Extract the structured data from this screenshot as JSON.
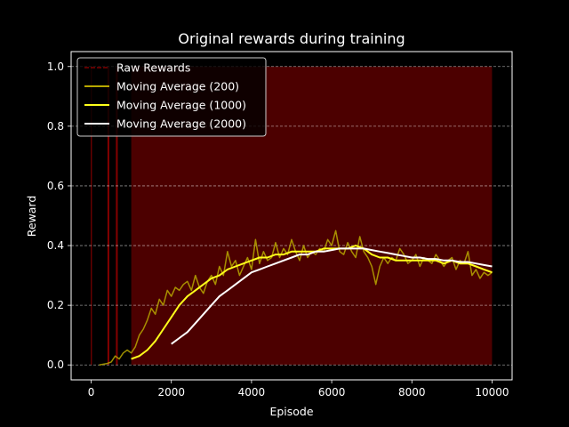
{
  "chart_data": {
    "type": "line",
    "title": "Original rewards during training",
    "xlabel": "Episode",
    "ylabel": "Reward",
    "xlim": [
      -500,
      10500
    ],
    "ylim": [
      -0.05,
      1.05
    ],
    "xticks": [
      0,
      2000,
      4000,
      6000,
      8000,
      10000
    ],
    "yticks": [
      0.0,
      0.2,
      0.4,
      0.6,
      0.8,
      1.0
    ],
    "xtick_labels": [
      "0",
      "2000",
      "4000",
      "6000",
      "8000",
      "10000"
    ],
    "ytick_labels": [
      "0.0",
      "0.2",
      "0.4",
      "0.6",
      "0.8",
      "1.0"
    ],
    "grid": "horizontal-dashed",
    "legend_position": "top-left",
    "background": "#000000",
    "raw_rewards": {
      "name": "Raw Rewards",
      "color": "#7f0000",
      "description": "binary rewards (0 or 1) per episode; dense after ~1000 episodes",
      "sparse_episodes": [
        5,
        420,
        440,
        630,
        650
      ],
      "dense_range": [
        1000,
        10000
      ]
    },
    "series": [
      {
        "name": "Moving Average (200)",
        "color": "#b8a800",
        "x": [
          200,
          400,
          500,
          600,
          700,
          800,
          900,
          1000,
          1100,
          1200,
          1300,
          1400,
          1500,
          1600,
          1700,
          1800,
          1900,
          2000,
          2100,
          2200,
          2300,
          2400,
          2500,
          2600,
          2700,
          2800,
          2900,
          3000,
          3100,
          3200,
          3300,
          3400,
          3500,
          3600,
          3700,
          3800,
          3900,
          4000,
          4100,
          4200,
          4300,
          4400,
          4500,
          4600,
          4700,
          4800,
          4900,
          5000,
          5100,
          5200,
          5300,
          5400,
          5500,
          5600,
          5700,
          5800,
          5900,
          6000,
          6100,
          6200,
          6300,
          6400,
          6500,
          6600,
          6700,
          6800,
          6900,
          7000,
          7100,
          7200,
          7300,
          7400,
          7500,
          7600,
          7700,
          7800,
          7900,
          8000,
          8100,
          8200,
          8300,
          8400,
          8500,
          8600,
          8700,
          8800,
          8900,
          9000,
          9100,
          9200,
          9300,
          9400,
          9500,
          9600,
          9700,
          9800,
          9900,
          10000
        ],
        "values": [
          0.0,
          0.005,
          0.01,
          0.03,
          0.02,
          0.04,
          0.05,
          0.04,
          0.06,
          0.1,
          0.12,
          0.15,
          0.19,
          0.17,
          0.22,
          0.2,
          0.25,
          0.23,
          0.26,
          0.25,
          0.27,
          0.28,
          0.25,
          0.3,
          0.26,
          0.24,
          0.28,
          0.3,
          0.27,
          0.33,
          0.3,
          0.38,
          0.33,
          0.35,
          0.3,
          0.33,
          0.36,
          0.32,
          0.42,
          0.34,
          0.38,
          0.35,
          0.36,
          0.41,
          0.36,
          0.39,
          0.37,
          0.42,
          0.38,
          0.35,
          0.4,
          0.36,
          0.38,
          0.37,
          0.39,
          0.38,
          0.42,
          0.4,
          0.45,
          0.38,
          0.37,
          0.41,
          0.38,
          0.36,
          0.43,
          0.38,
          0.36,
          0.33,
          0.27,
          0.33,
          0.36,
          0.34,
          0.36,
          0.35,
          0.39,
          0.37,
          0.34,
          0.35,
          0.37,
          0.33,
          0.36,
          0.35,
          0.34,
          0.37,
          0.35,
          0.33,
          0.35,
          0.36,
          0.32,
          0.35,
          0.34,
          0.38,
          0.3,
          0.32,
          0.29,
          0.31,
          0.3,
          0.31
        ]
      },
      {
        "name": "Moving Average (1000)",
        "color": "#ffff1a",
        "x": [
          1000,
          1200,
          1400,
          1600,
          1800,
          2000,
          2200,
          2400,
          2600,
          2800,
          3000,
          3200,
          3400,
          3600,
          3800,
          4000,
          4200,
          4400,
          4600,
          4800,
          5000,
          5200,
          5400,
          5600,
          5800,
          6000,
          6200,
          6400,
          6600,
          6800,
          7000,
          7200,
          7400,
          7600,
          7800,
          8000,
          8200,
          8400,
          8600,
          8800,
          9000,
          9200,
          9400,
          9600,
          9800,
          10000
        ],
        "values": [
          0.02,
          0.03,
          0.05,
          0.08,
          0.12,
          0.16,
          0.2,
          0.23,
          0.25,
          0.27,
          0.29,
          0.3,
          0.32,
          0.33,
          0.34,
          0.35,
          0.36,
          0.36,
          0.37,
          0.37,
          0.38,
          0.38,
          0.38,
          0.38,
          0.39,
          0.39,
          0.39,
          0.39,
          0.4,
          0.39,
          0.37,
          0.36,
          0.36,
          0.35,
          0.35,
          0.35,
          0.35,
          0.35,
          0.35,
          0.34,
          0.35,
          0.34,
          0.34,
          0.33,
          0.32,
          0.31
        ]
      },
      {
        "name": "Moving Average (2000)",
        "color": "#ffffff",
        "x": [
          2000,
          2200,
          2400,
          2600,
          2800,
          3000,
          3200,
          3400,
          3600,
          3800,
          4000,
          4200,
          4400,
          4600,
          4800,
          5000,
          5200,
          5400,
          5600,
          5800,
          6000,
          6200,
          6400,
          6600,
          6800,
          7000,
          7200,
          7400,
          7600,
          7800,
          8000,
          8200,
          8400,
          8600,
          8800,
          9000,
          9200,
          9400,
          9600,
          9800,
          10000
        ],
        "values": [
          0.07,
          0.09,
          0.11,
          0.14,
          0.17,
          0.2,
          0.23,
          0.25,
          0.27,
          0.29,
          0.31,
          0.32,
          0.33,
          0.34,
          0.35,
          0.36,
          0.37,
          0.37,
          0.38,
          0.38,
          0.385,
          0.39,
          0.39,
          0.39,
          0.39,
          0.385,
          0.38,
          0.375,
          0.37,
          0.365,
          0.36,
          0.36,
          0.355,
          0.355,
          0.35,
          0.35,
          0.345,
          0.345,
          0.34,
          0.335,
          0.33
        ]
      }
    ]
  }
}
